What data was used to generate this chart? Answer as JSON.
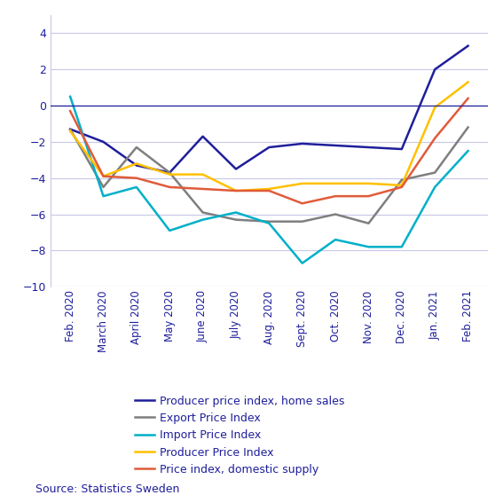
{
  "months": [
    "Feb. 2020",
    "March 2020",
    "April 2020",
    "May 2020",
    "June 2020",
    "July 2020",
    "Aug. 2020",
    "Sept. 2020",
    "Oct. 2020",
    "Nov. 2020",
    "Dec. 2020",
    "Jan. 2021",
    "Feb. 2021"
  ],
  "producer_home": [
    -1.3,
    -2.0,
    -3.3,
    -3.7,
    -1.7,
    -3.5,
    -2.3,
    -2.1,
    -2.2,
    -2.3,
    -2.4,
    2.0,
    3.3
  ],
  "export_price": [
    -1.3,
    -4.5,
    -2.3,
    -3.7,
    -5.9,
    -6.3,
    -6.4,
    -6.4,
    -6.0,
    -6.5,
    -4.1,
    -3.7,
    -1.2
  ],
  "import_price": [
    0.5,
    -5.0,
    -4.5,
    -6.9,
    -6.3,
    -5.9,
    -6.5,
    -8.7,
    -7.4,
    -7.8,
    -7.8,
    -4.5,
    -2.5
  ],
  "producer_price": [
    -1.4,
    -3.9,
    -3.2,
    -3.8,
    -3.8,
    -4.7,
    -4.6,
    -4.3,
    -4.3,
    -4.3,
    -4.4,
    -0.1,
    1.3
  ],
  "domestic_supply": [
    -0.3,
    -3.9,
    -4.0,
    -4.5,
    -4.6,
    -4.7,
    -4.7,
    -5.4,
    -5.0,
    -5.0,
    -4.5,
    -1.8,
    0.4
  ],
  "colors": {
    "producer_home": "#1f1f9b",
    "export_price": "#7f7f7f",
    "import_price": "#00b0c8",
    "producer_price": "#ffc000",
    "domestic_supply": "#e05b3a"
  },
  "ylim": [
    -10,
    5
  ],
  "yticks": [
    -10,
    -8,
    -6,
    -4,
    -2,
    0,
    2,
    4
  ],
  "source": "Source: Statistics Sweden",
  "legend_labels": [
    "Producer price index, home sales",
    "Export Price Index",
    "Import Price Index",
    "Producer Price Index",
    "Price index, domestic supply"
  ],
  "grid_color": "#c8c8e8",
  "zero_line_color": "#1f1f9b",
  "spine_color": "#c8c8e8",
  "text_color": "#1f1f9b",
  "background_color": "#ffffff",
  "linewidth": 1.8
}
